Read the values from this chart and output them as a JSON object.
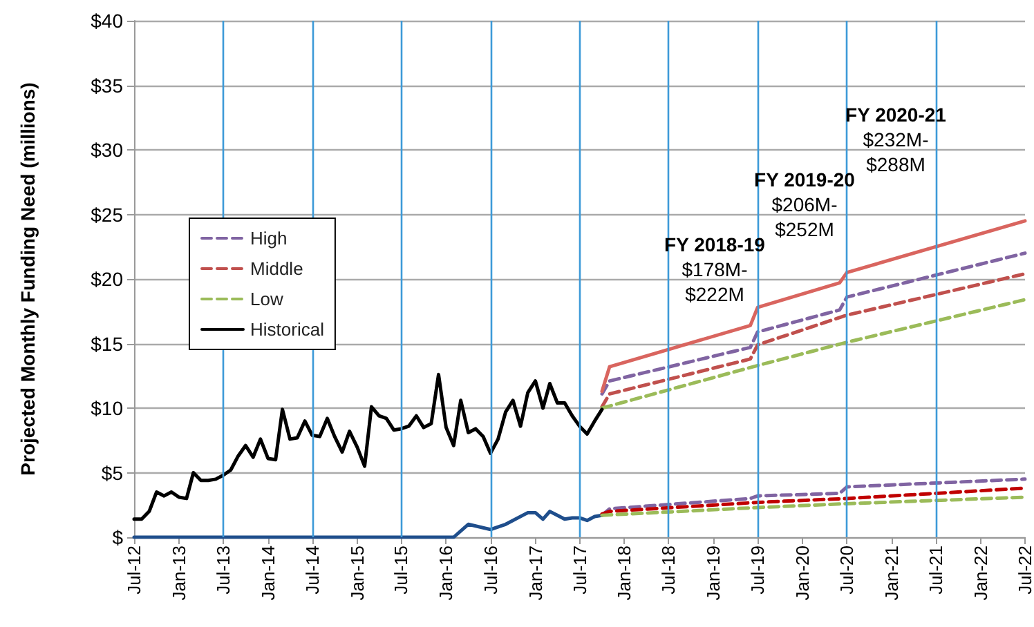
{
  "chart_data": {
    "type": "line",
    "ylabel": "Projected Monthly Funding Need (millions)",
    "xlim": [
      "2012-07",
      "2022-07"
    ],
    "xticks": [
      {
        "value": "2012-07",
        "label": "Jul-12"
      },
      {
        "value": "2013-01",
        "label": "Jan-13"
      },
      {
        "value": "2013-07",
        "label": "Jul-13"
      },
      {
        "value": "2014-01",
        "label": "Jan-14"
      },
      {
        "value": "2014-07",
        "label": "Jul-14"
      },
      {
        "value": "2015-01",
        "label": "Jan-15"
      },
      {
        "value": "2015-07",
        "label": "Jul-15"
      },
      {
        "value": "2016-01",
        "label": "Jan-16"
      },
      {
        "value": "2016-07",
        "label": "Jul-16"
      },
      {
        "value": "2017-01",
        "label": "Jan-17"
      },
      {
        "value": "2017-07",
        "label": "Jul-17"
      },
      {
        "value": "2018-01",
        "label": "Jan-18"
      },
      {
        "value": "2018-07",
        "label": "Jul-18"
      },
      {
        "value": "2019-01",
        "label": "Jan-19"
      },
      {
        "value": "2019-07",
        "label": "Jul-19"
      },
      {
        "value": "2020-01",
        "label": "Jan-20"
      },
      {
        "value": "2020-07",
        "label": "Jul-20"
      },
      {
        "value": "2021-01",
        "label": "Jan-21"
      },
      {
        "value": "2021-07",
        "label": "Jul-21"
      },
      {
        "value": "2022-01",
        "label": "Jan-22"
      },
      {
        "value": "2022-07",
        "label": "Jul-22"
      }
    ],
    "ylim": [
      0,
      40
    ],
    "yticks": [
      {
        "value": 0,
        "label": "$"
      },
      {
        "value": 5,
        "label": "$5"
      },
      {
        "value": 10,
        "label": "$10"
      },
      {
        "value": 15,
        "label": "$15"
      },
      {
        "value": 20,
        "label": "$20"
      },
      {
        "value": 25,
        "label": "$25"
      },
      {
        "value": 30,
        "label": "$30"
      },
      {
        "value": 35,
        "label": "$35"
      },
      {
        "value": 40,
        "label": "$40"
      }
    ],
    "grid": "y",
    "legend": "left",
    "ref_lines": [
      {
        "axis": "x",
        "value": "2013-07",
        "color": "#3d9ad8"
      },
      {
        "axis": "x",
        "value": "2014-07",
        "color": "#3d9ad8"
      },
      {
        "axis": "x",
        "value": "2015-07",
        "color": "#3d9ad8"
      },
      {
        "axis": "x",
        "value": "2016-07",
        "color": "#3d9ad8"
      },
      {
        "axis": "x",
        "value": "2017-07",
        "color": "#3d9ad8"
      },
      {
        "axis": "x",
        "value": "2018-07",
        "color": "#3d9ad8"
      },
      {
        "axis": "x",
        "value": "2019-07",
        "color": "#3d9ad8"
      },
      {
        "axis": "x",
        "value": "2020-07",
        "color": "#3d9ad8"
      },
      {
        "axis": "x",
        "value": "2021-07",
        "color": "#3d9ad8"
      }
    ],
    "annotations": [
      "FY 2018-19\n$178M-\n$222M",
      "FY 2019-20\n$206M-\n$252M",
      "FY 2020-21\n$232M-\n$288M"
    ],
    "series": [
      {
        "name": "High",
        "color": "#8064a2",
        "line_style": "dashed",
        "x": [
          "2017-10",
          "2017-11",
          "2019-06",
          "2019-07",
          "2020-06",
          "2020-07",
          "2022-07"
        ],
        "values": [
          11.1,
          12.1,
          14.7,
          15.9,
          17.6,
          18.6,
          22.0
        ]
      },
      {
        "name": "Middle",
        "color": "#c0504d",
        "line_style": "dashed",
        "x": [
          "2017-10",
          "2017-11",
          "2019-06",
          "2019-07",
          "2020-07",
          "2022-07"
        ],
        "values": [
          10.1,
          11.1,
          13.8,
          14.9,
          17.2,
          20.4
        ]
      },
      {
        "name": "Low",
        "color": "#9bbb59",
        "line_style": "dashed",
        "x": [
          "2017-10",
          "2019-07",
          "2020-07",
          "2022-07"
        ],
        "values": [
          10.0,
          13.3,
          15.1,
          18.4
        ]
      },
      {
        "name": "Historical",
        "color": "#000000",
        "line_style": "solid",
        "x": [
          "2012-07",
          "2012-08",
          "2012-09",
          "2012-10",
          "2012-11",
          "2012-12",
          "2013-01",
          "2013-02",
          "2013-03",
          "2013-04",
          "2013-05",
          "2013-06",
          "2013-07",
          "2013-08",
          "2013-09",
          "2013-10",
          "2013-11",
          "2013-12",
          "2014-01",
          "2014-02",
          "2014-03",
          "2014-04",
          "2014-05",
          "2014-06",
          "2014-07",
          "2014-08",
          "2014-09",
          "2014-10",
          "2014-11",
          "2014-12",
          "2015-01",
          "2015-02",
          "2015-03",
          "2015-04",
          "2015-05",
          "2015-06",
          "2015-07",
          "2015-08",
          "2015-09",
          "2015-10",
          "2015-11",
          "2015-12",
          "2016-01",
          "2016-02",
          "2016-03",
          "2016-04",
          "2016-05",
          "2016-06",
          "2016-07",
          "2016-08",
          "2016-09",
          "2016-10",
          "2016-11",
          "2016-12",
          "2017-01",
          "2017-02",
          "2017-03",
          "2017-04",
          "2017-05",
          "2017-06",
          "2017-07",
          "2017-08",
          "2017-09",
          "2017-10"
        ],
        "values": [
          1.4,
          1.4,
          2.0,
          3.5,
          3.2,
          3.5,
          3.1,
          3.0,
          5.0,
          4.4,
          4.4,
          4.5,
          4.8,
          5.2,
          6.3,
          7.1,
          6.2,
          7.6,
          6.1,
          6.0,
          9.9,
          7.6,
          7.7,
          9.0,
          7.9,
          7.8,
          9.2,
          7.8,
          6.6,
          8.2,
          7.0,
          5.5,
          10.1,
          9.4,
          9.2,
          8.3,
          8.4,
          8.6,
          9.4,
          8.5,
          8.8,
          12.6,
          8.5,
          7.1,
          10.6,
          8.1,
          8.4,
          7.8,
          6.5,
          7.6,
          9.7,
          10.6,
          8.6,
          11.2,
          12.1,
          10.0,
          11.9,
          10.4,
          10.4,
          9.4,
          8.6,
          8.0,
          9.0,
          9.9
        ]
      },
      {
        "color": "#1f4e8c",
        "line_style": "solid",
        "x": [
          "2012-07",
          "2016-02",
          "2016-04",
          "2016-07",
          "2016-09",
          "2016-12",
          "2017-01",
          "2017-02",
          "2017-03",
          "2017-04",
          "2017-05",
          "2017-06",
          "2017-07",
          "2017-08",
          "2017-09",
          "2017-10"
        ],
        "values": [
          0,
          0,
          1.0,
          0.6,
          1.0,
          1.9,
          1.9,
          1.4,
          2.0,
          1.7,
          1.4,
          1.5,
          1.5,
          1.3,
          1.6,
          1.7
        ]
      },
      {
        "color": "#d9655f",
        "line_style": "solid",
        "x": [
          "2017-10",
          "2017-11",
          "2019-06",
          "2019-07",
          "2020-06",
          "2020-07",
          "2022-07"
        ],
        "values": [
          11.3,
          13.2,
          16.4,
          17.8,
          19.7,
          20.5,
          24.5
        ]
      },
      {
        "color": "#8064a2",
        "line_style": "dashed",
        "x": [
          "2017-10",
          "2017-11",
          "2019-06",
          "2019-07",
          "2020-06",
          "2020-07",
          "2022-07"
        ],
        "values": [
          1.7,
          2.2,
          3.0,
          3.2,
          3.4,
          3.9,
          4.5
        ]
      },
      {
        "color": "#c00000",
        "line_style": "dashed",
        "x": [
          "2017-10",
          "2017-11",
          "2019-07",
          "2020-07",
          "2022-07"
        ],
        "values": [
          1.8,
          2.0,
          2.7,
          3.0,
          3.8
        ]
      },
      {
        "color": "#9bbb59",
        "line_style": "dashed",
        "x": [
          "2017-10",
          "2019-07",
          "2020-07",
          "2022-07"
        ],
        "values": [
          1.7,
          2.3,
          2.6,
          3.1
        ]
      }
    ]
  }
}
